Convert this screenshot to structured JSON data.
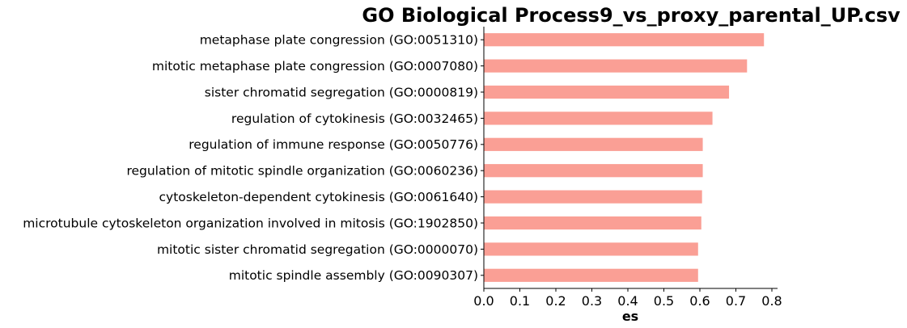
{
  "chart_data": {
    "type": "bar",
    "orientation": "horizontal",
    "title": "GO Biological Process9_vs_proxy_parental_UP.csv",
    "xlabel": "es",
    "ylabel": "",
    "categories": [
      "metaphase plate congression (GO:0051310)",
      "mitotic metaphase plate congression (GO:0007080)",
      "sister chromatid segregation (GO:0000819)",
      "regulation of cytokinesis (GO:0032465)",
      "regulation of immune response (GO:0050776)",
      "regulation of mitotic spindle organization (GO:0060236)",
      "cytoskeleton-dependent cytokinesis (GO:0061640)",
      "microtubule cytoskeleton organization involved in mitosis (GO:1902850)",
      "mitotic sister chromatid segregation (GO:0000070)",
      "mitotic spindle assembly (GO:0090307)"
    ],
    "values": [
      0.778,
      0.731,
      0.681,
      0.635,
      0.608,
      0.608,
      0.606,
      0.604,
      0.595,
      0.595
    ],
    "xlim": [
      0.0,
      0.805
    ],
    "xticks": [
      "0.0",
      "0.1",
      "0.2",
      "0.3",
      "0.4",
      "0.5",
      "0.6",
      "0.7",
      "0.8"
    ],
    "bar_color": "#fa9f95",
    "grid": false,
    "legend": "none"
  }
}
